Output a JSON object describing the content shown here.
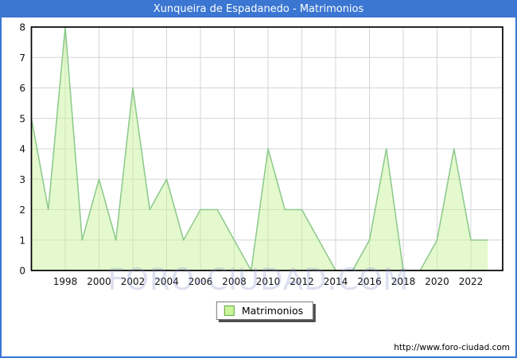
{
  "window": {
    "title": "Xunqueira de Espadanedo - Matrimonios"
  },
  "chart_data": {
    "type": "area",
    "title": "Xunqueira de Espadanedo - Matrimonios",
    "x": [
      1996,
      1997,
      1998,
      1999,
      2000,
      2001,
      2002,
      2003,
      2004,
      2005,
      2006,
      2007,
      2008,
      2009,
      2010,
      2011,
      2012,
      2013,
      2014,
      2015,
      2016,
      2017,
      2018,
      2019,
      2020,
      2021,
      2022,
      2023
    ],
    "series": [
      {
        "name": "Matrimonios",
        "values": [
          5,
          2,
          8,
          1,
          3,
          1,
          6,
          2,
          3,
          1,
          2,
          2,
          1,
          0,
          4,
          2,
          2,
          1,
          0,
          0,
          1,
          4,
          0,
          0,
          1,
          4,
          1,
          1
        ]
      }
    ],
    "ylim": [
      0,
      8
    ],
    "y_ticks": [
      0,
      1,
      2,
      3,
      4,
      5,
      6,
      7,
      8
    ],
    "x_ticks": [
      1998,
      2000,
      2002,
      2004,
      2006,
      2008,
      2010,
      2012,
      2014,
      2016,
      2018,
      2020,
      2022
    ],
    "grid": true,
    "legend_position": "bottom"
  },
  "legend": {
    "label": "Matrimonios"
  },
  "watermark": {
    "text": "FORO-CIUDAD.COM"
  },
  "footer": {
    "url": "http://www.foro-ciudad.com"
  },
  "colors": {
    "accent_blue": "#3a76d2",
    "plot_border": "#000000",
    "gridline": "#d4d4d4",
    "area_fill": "#ccf39e",
    "area_fill_opacity": 0.5,
    "line_stroke": "#8fcb8f",
    "legend_swatch": "#c9f49a"
  }
}
